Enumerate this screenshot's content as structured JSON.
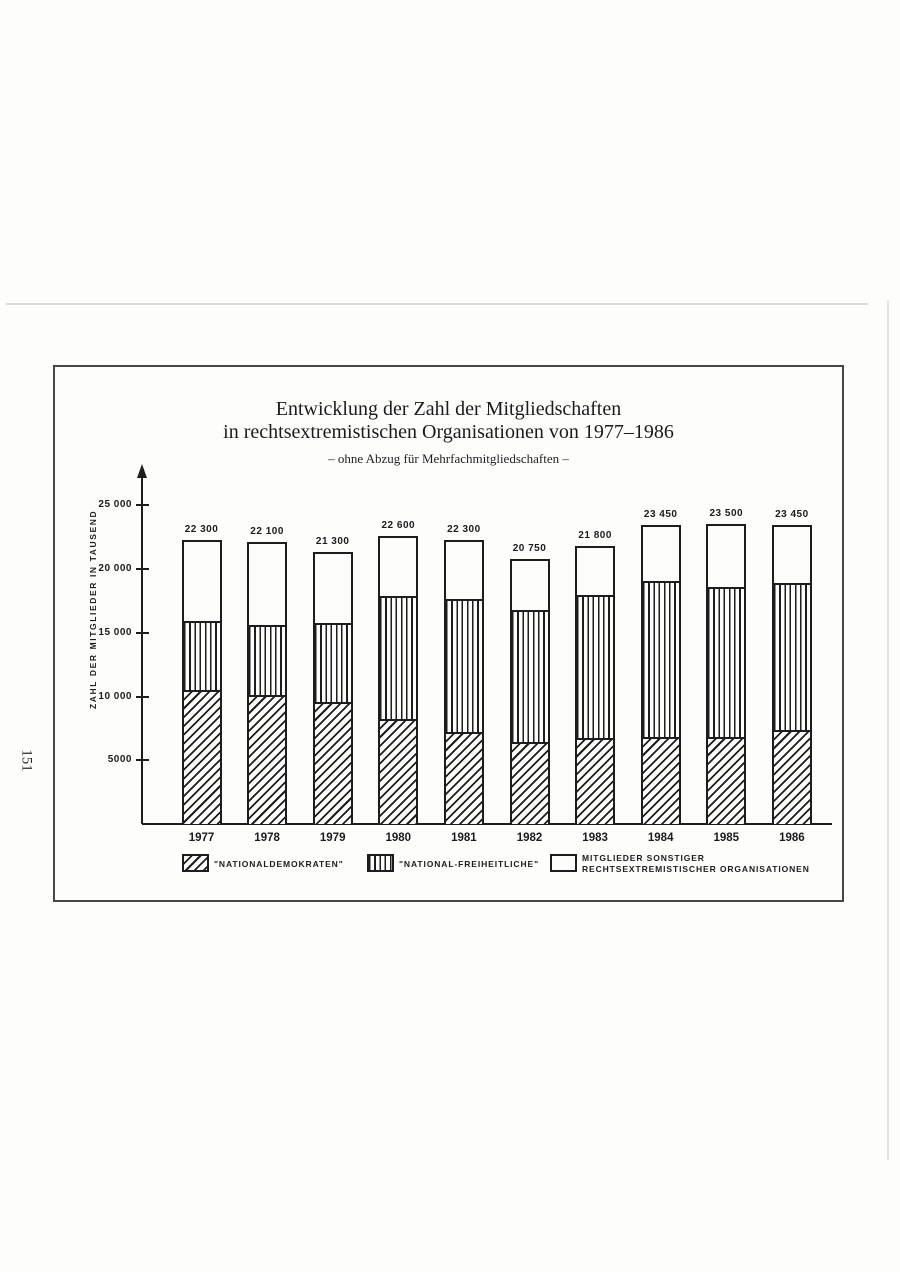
{
  "page": {
    "number": "151"
  },
  "figure": {
    "title_line1": "Entwicklung der Zahl der Mitgliedschaften",
    "title_line2": "in rechtsextremistischen Organisationen von 1977–1986",
    "subtitle": "– ohne Abzug für Mehrfachmitgliedschaften –"
  },
  "chart_data": {
    "type": "bar",
    "stacked": true,
    "title": "Entwicklung der Zahl der Mitgliedschaften in rechtsextremistischen Organisationen von 1977–1986",
    "subtitle": "– ohne Abzug für Mehrfachmitgliedschaften –",
    "ylabel": "ZAHL DER MITGLIEDER IN TAUSEND",
    "xlabel": "",
    "ylim": [
      0,
      25000
    ],
    "grid": false,
    "legend_position": "bottom",
    "y_ticks": [
      {
        "value": 25000,
        "label": "25 000"
      },
      {
        "value": 20000,
        "label": "20 000"
      },
      {
        "value": 15000,
        "label": "15 000"
      },
      {
        "value": 10000,
        "label": "10 000"
      },
      {
        "value": 5000,
        "label": "5000"
      }
    ],
    "categories": [
      "1977",
      "1978",
      "1979",
      "1980",
      "1981",
      "1982",
      "1983",
      "1984",
      "1985",
      "1986"
    ],
    "series": [
      {
        "name": "\"NATIONALDEMOKRATEN\"",
        "pattern": "diagonal-hatch",
        "values": [
          10600,
          10200,
          9600,
          8300,
          7300,
          6500,
          6800,
          6900,
          6900,
          7400
        ]
      },
      {
        "name": "\"NATIONAL-FREIHEITLICHE\"",
        "pattern": "vertical-lines",
        "values": [
          5400,
          5500,
          6300,
          9700,
          10500,
          10400,
          11300,
          12300,
          11800,
          11600
        ]
      },
      {
        "name": "MITGLIEDER SONSTIGER RECHTSEXTREMISTISCHER ORGANISATIONEN",
        "pattern": "white",
        "values": [
          6300,
          6400,
          5400,
          4600,
          4500,
          3850,
          3700,
          4250,
          4800,
          4450
        ]
      }
    ],
    "totals": [
      22300,
      22100,
      21300,
      22600,
      22300,
      20750,
      21800,
      23450,
      23500,
      23450
    ],
    "total_labels": [
      "22 300",
      "22 100",
      "21 300",
      "22 600",
      "22 300",
      "20 750",
      "21 800",
      "23 450",
      "23 500",
      "23 450"
    ]
  },
  "legend": {
    "items": [
      {
        "label": "\"NATIONALDEMOKRATEN\"",
        "pattern": "diagonal-hatch"
      },
      {
        "label": "\"NATIONAL-FREIHEITLICHE\"",
        "pattern": "vertical-lines"
      },
      {
        "label_line1": "MITGLIEDER SONSTIGER",
        "label_line2": "RECHTSEXTREMISTISCHER ORGANISATIONEN",
        "pattern": "white"
      }
    ]
  },
  "colors": {
    "ink": "#1d1d1d",
    "paper": "#fdfdfc",
    "box_border": "#474747"
  }
}
